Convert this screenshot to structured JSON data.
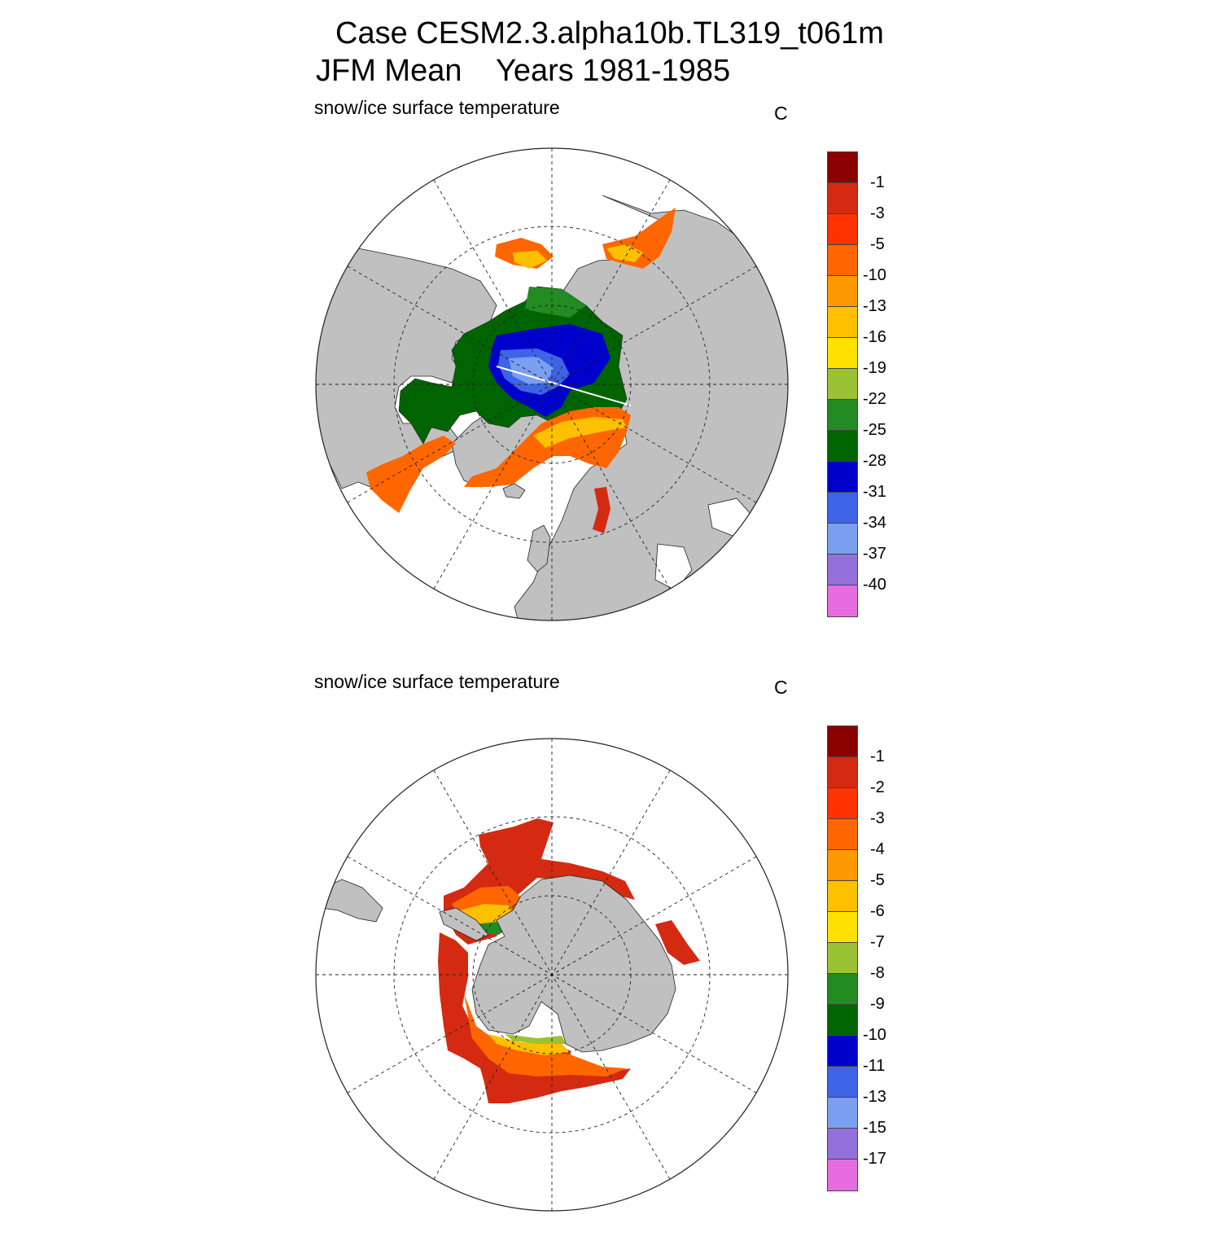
{
  "title": {
    "line1": "Case CESM2.3.alpha10b.TL319_t061m",
    "line2": "JFM Mean    Years 1981-1985"
  },
  "panels": [
    {
      "hemisphere": "north",
      "variable_label": "snow/ice surface temperature",
      "units": "C",
      "colorbar": {
        "colors": [
          "#8b0000",
          "#d42a12",
          "#ff3300",
          "#ff6600",
          "#ff9900",
          "#ffc000",
          "#ffe100",
          "#9ac234",
          "#228b22",
          "#006400",
          "#0000cd",
          "#3e64e6",
          "#7b9ff0",
          "#9370db",
          "#e66ce0"
        ],
        "labels": [
          "-1",
          "-3",
          "-5",
          "-10",
          "-13",
          "-16",
          "-19",
          "-22",
          "-25",
          "-28",
          "-31",
          "-34",
          "-37",
          "-40"
        ]
      }
    },
    {
      "hemisphere": "south",
      "variable_label": "snow/ice surface temperature",
      "units": "C",
      "colorbar": {
        "colors": [
          "#8b0000",
          "#d42a12",
          "#ff3300",
          "#ff6600",
          "#ff9900",
          "#ffc000",
          "#ffe100",
          "#9ac234",
          "#228b22",
          "#006400",
          "#0000cd",
          "#3e64e6",
          "#7b9ff0",
          "#9370db",
          "#e66ce0"
        ],
        "labels": [
          "-1",
          "-2",
          "-3",
          "-4",
          "-5",
          "-6",
          "-7",
          "-8",
          "-9",
          "-10",
          "-11",
          "-13",
          "-15",
          "-17"
        ]
      }
    }
  ]
}
